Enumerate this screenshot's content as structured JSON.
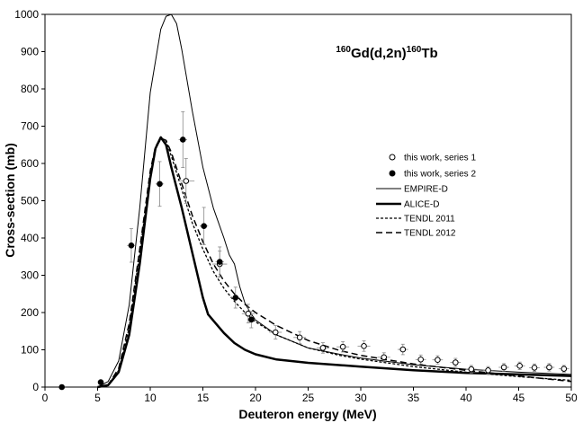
{
  "chart_data": {
    "type": "line",
    "title": {
      "pre_sup": "160",
      "pre": "Gd(d,2n)",
      "post_sup": "160",
      "post": "Tb"
    },
    "xlabel": "Deuteron energy (MeV)",
    "ylabel": "Cross-section (mb)",
    "xlim": [
      0,
      50
    ],
    "ylim": [
      0,
      1000
    ],
    "xticks": [
      "0",
      "5",
      "10",
      "15",
      "20",
      "25",
      "30",
      "35",
      "40",
      "45",
      "50"
    ],
    "yticks": [
      "0",
      "100",
      "200",
      "300",
      "400",
      "500",
      "600",
      "700",
      "800",
      "900",
      "1000"
    ],
    "grid": false,
    "legend_position": "right",
    "series": [
      {
        "name": "this work, series 1",
        "kind": "open-markers",
        "points": [
          {
            "x": 13.4,
            "y": 553,
            "xerr": 0.8,
            "yerr": 60
          },
          {
            "x": 16.6,
            "y": 330,
            "xerr": 0.7,
            "yerr": 35
          },
          {
            "x": 19.3,
            "y": 197,
            "xerr": 0.6,
            "yerr": 25
          },
          {
            "x": 21.9,
            "y": 147,
            "xerr": 0.6,
            "yerr": 18
          },
          {
            "x": 24.2,
            "y": 133,
            "xerr": 0.6,
            "yerr": 16
          },
          {
            "x": 26.4,
            "y": 105,
            "xerr": 0.6,
            "yerr": 14
          },
          {
            "x": 28.3,
            "y": 108,
            "xerr": 0.6,
            "yerr": 14
          },
          {
            "x": 30.3,
            "y": 110,
            "xerr": 0.6,
            "yerr": 14
          },
          {
            "x": 32.2,
            "y": 80,
            "xerr": 0.6,
            "yerr": 12
          },
          {
            "x": 34.0,
            "y": 101,
            "xerr": 0.5,
            "yerr": 14
          },
          {
            "x": 35.7,
            "y": 74,
            "xerr": 0.5,
            "yerr": 12
          },
          {
            "x": 37.3,
            "y": 73,
            "xerr": 0.5,
            "yerr": 11
          },
          {
            "x": 39.0,
            "y": 66,
            "xerr": 0.5,
            "yerr": 11
          },
          {
            "x": 40.5,
            "y": 48,
            "xerr": 0.5,
            "yerr": 10
          },
          {
            "x": 42.1,
            "y": 45,
            "xerr": 0.5,
            "yerr": 10
          },
          {
            "x": 43.6,
            "y": 53,
            "xerr": 0.5,
            "yerr": 10
          },
          {
            "x": 45.1,
            "y": 57,
            "xerr": 0.5,
            "yerr": 10
          },
          {
            "x": 46.5,
            "y": 52,
            "xerr": 0.5,
            "yerr": 10
          },
          {
            "x": 47.9,
            "y": 53,
            "xerr": 0.5,
            "yerr": 10
          },
          {
            "x": 49.3,
            "y": 49,
            "xerr": 0.5,
            "yerr": 9
          }
        ]
      },
      {
        "name": "this work, series 2",
        "kind": "filled-markers",
        "points": [
          {
            "x": 1.6,
            "y": 0,
            "xerr": 0,
            "yerr": 0
          },
          {
            "x": 5.3,
            "y": 13,
            "xerr": 0,
            "yerr": 3
          },
          {
            "x": 8.2,
            "y": 380,
            "xerr": 0.4,
            "yerr": 45
          },
          {
            "x": 10.9,
            "y": 545,
            "xerr": 0.4,
            "yerr": 60
          },
          {
            "x": 13.1,
            "y": 664,
            "xerr": 0.4,
            "yerr": 75
          },
          {
            "x": 15.1,
            "y": 432,
            "xerr": 0.4,
            "yerr": 50
          },
          {
            "x": 16.6,
            "y": 336,
            "xerr": 0.4,
            "yerr": 40
          },
          {
            "x": 18.1,
            "y": 240,
            "xerr": 0.4,
            "yerr": 28
          },
          {
            "x": 19.6,
            "y": 181,
            "xerr": 0.4,
            "yerr": 22
          }
        ]
      },
      {
        "name": "EMPIRE-D",
        "kind": "line",
        "width": 1,
        "dash": "",
        "points": [
          [
            5,
            0
          ],
          [
            6,
            15
          ],
          [
            7,
            70
          ],
          [
            8,
            220
          ],
          [
            9,
            480
          ],
          [
            10,
            790
          ],
          [
            11,
            960
          ],
          [
            11.5,
            995
          ],
          [
            12,
            1000
          ],
          [
            12.5,
            975
          ],
          [
            13,
            905
          ],
          [
            14,
            740
          ],
          [
            15,
            590
          ],
          [
            16,
            480
          ],
          [
            17,
            400
          ],
          [
            17.5,
            355
          ],
          [
            18,
            330
          ],
          [
            18.5,
            270
          ],
          [
            19,
            225
          ],
          [
            19.5,
            200
          ],
          [
            20,
            180
          ],
          [
            22,
            140
          ],
          [
            25,
            105
          ],
          [
            28,
            88
          ],
          [
            30,
            78
          ],
          [
            35,
            60
          ],
          [
            40,
            48
          ],
          [
            45,
            40
          ],
          [
            50,
            34
          ]
        ]
      },
      {
        "name": "ALICE-D",
        "kind": "line",
        "width": 2.5,
        "dash": "",
        "points": [
          [
            5,
            0
          ],
          [
            6,
            5
          ],
          [
            7,
            40
          ],
          [
            8,
            140
          ],
          [
            9,
            330
          ],
          [
            10,
            560
          ],
          [
            10.5,
            640
          ],
          [
            11,
            670
          ],
          [
            11.5,
            650
          ],
          [
            12,
            590
          ],
          [
            13,
            480
          ],
          [
            14,
            360
          ],
          [
            15,
            240
          ],
          [
            15.5,
            195
          ],
          [
            16,
            178
          ],
          [
            17,
            145
          ],
          [
            18,
            118
          ],
          [
            19,
            100
          ],
          [
            20,
            88
          ],
          [
            22,
            74
          ],
          [
            25,
            65
          ],
          [
            30,
            55
          ],
          [
            35,
            45
          ],
          [
            40,
            38
          ],
          [
            45,
            34
          ],
          [
            50,
            30
          ]
        ]
      },
      {
        "name": "TENDL 2011",
        "kind": "line",
        "width": 1.3,
        "dash": "3,2",
        "points": [
          [
            5,
            0
          ],
          [
            6,
            5
          ],
          [
            7,
            45
          ],
          [
            8,
            160
          ],
          [
            9,
            360
          ],
          [
            10,
            570
          ],
          [
            10.5,
            640
          ],
          [
            11,
            665
          ],
          [
            11.5,
            660
          ],
          [
            12,
            620
          ],
          [
            13,
            530
          ],
          [
            14,
            440
          ],
          [
            15,
            370
          ],
          [
            16,
            310
          ],
          [
            17,
            265
          ],
          [
            18,
            230
          ],
          [
            19,
            200
          ],
          [
            20,
            175
          ],
          [
            22,
            140
          ],
          [
            25,
            105
          ],
          [
            28,
            85
          ],
          [
            30,
            75
          ],
          [
            35,
            55
          ],
          [
            40,
            40
          ],
          [
            45,
            28
          ],
          [
            50,
            18
          ]
        ]
      },
      {
        "name": "TENDL 2012",
        "kind": "line",
        "width": 1.5,
        "dash": "7,4",
        "points": [
          [
            5,
            0
          ],
          [
            6,
            6
          ],
          [
            7,
            50
          ],
          [
            8,
            170
          ],
          [
            9,
            370
          ],
          [
            10,
            580
          ],
          [
            10.5,
            645
          ],
          [
            11,
            668
          ],
          [
            11.5,
            662
          ],
          [
            12,
            630
          ],
          [
            13,
            545
          ],
          [
            14,
            460
          ],
          [
            15,
            390
          ],
          [
            16,
            330
          ],
          [
            17,
            285
          ],
          [
            18,
            250
          ],
          [
            19,
            222
          ],
          [
            20,
            200
          ],
          [
            22,
            165
          ],
          [
            25,
            125
          ],
          [
            28,
            98
          ],
          [
            30,
            85
          ],
          [
            35,
            62
          ],
          [
            40,
            45
          ],
          [
            45,
            30
          ],
          [
            50,
            15
          ]
        ]
      }
    ]
  }
}
